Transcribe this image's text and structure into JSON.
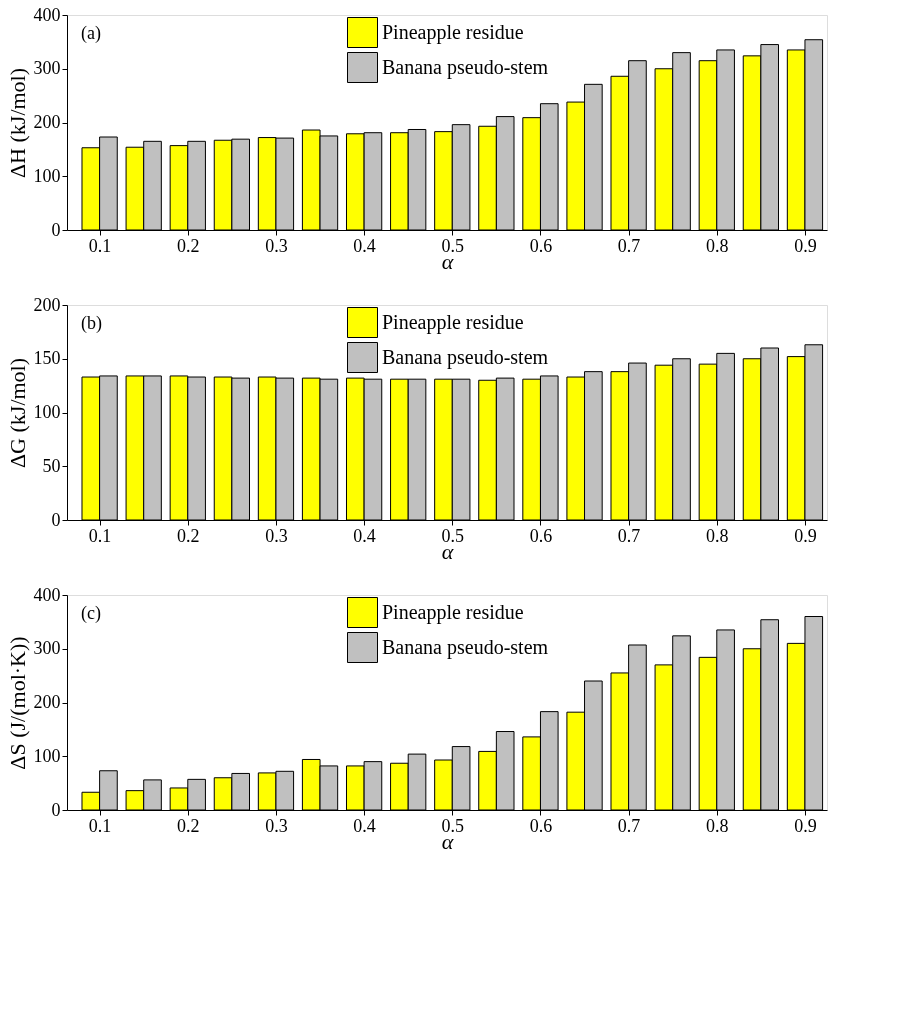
{
  "chart_data": [
    {
      "type": "bar",
      "annotations": [
        "(a)"
      ],
      "xlabel": "α",
      "ylabel": "ΔH (kJ/mol)",
      "legend": "top",
      "grid": false,
      "x": [
        0.1,
        0.15,
        0.2,
        0.25,
        0.3,
        0.35,
        0.4,
        0.45,
        0.5,
        0.55,
        0.6,
        0.65,
        0.7,
        0.75,
        0.8,
        0.85,
        0.9
      ],
      "xlim": [
        0.063,
        0.925
      ],
      "xticks": [
        0.1,
        0.2,
        0.3,
        0.4,
        0.5,
        0.6,
        0.7,
        0.8,
        0.9
      ],
      "ylim": [
        0,
        400
      ],
      "yticks": [
        0,
        100,
        200,
        300,
        400
      ],
      "series": [
        {
          "name": "Pineapple residue",
          "color": "#ffff00",
          "values": [
            153,
            154,
            157,
            167,
            172,
            186,
            179,
            181,
            183,
            193,
            209,
            238,
            286,
            300,
            315,
            324,
            335
          ]
        },
        {
          "name": "Banana pseudo-stem",
          "color": "#c0c0c0",
          "values": [
            173,
            165,
            165,
            169,
            171,
            175,
            181,
            187,
            196,
            211,
            235,
            271,
            315,
            330,
            335,
            345,
            354
          ]
        }
      ]
    },
    {
      "type": "bar",
      "annotations": [
        "(b)"
      ],
      "xlabel": "α",
      "ylabel": "ΔG (kJ/mol)",
      "legend": "top",
      "grid": false,
      "x": [
        0.1,
        0.15,
        0.2,
        0.25,
        0.3,
        0.35,
        0.4,
        0.45,
        0.5,
        0.55,
        0.6,
        0.65,
        0.7,
        0.75,
        0.8,
        0.85,
        0.9
      ],
      "xlim": [
        0.063,
        0.925
      ],
      "xticks": [
        0.1,
        0.2,
        0.3,
        0.4,
        0.5,
        0.6,
        0.7,
        0.8,
        0.9
      ],
      "ylim": [
        0,
        200
      ],
      "yticks": [
        0,
        50,
        100,
        150,
        200
      ],
      "series": [
        {
          "name": "Pineapple residue",
          "color": "#ffff00",
          "values": [
            133,
            134,
            134,
            133,
            133,
            132,
            132,
            131,
            131,
            130,
            131,
            133,
            138,
            144,
            145,
            150,
            152
          ]
        },
        {
          "name": "Banana pseudo-stem",
          "color": "#c0c0c0",
          "values": [
            134,
            134,
            133,
            132,
            132,
            131,
            131,
            131,
            131,
            132,
            134,
            138,
            146,
            150,
            155,
            160,
            163
          ]
        }
      ]
    },
    {
      "type": "bar",
      "annotations": [
        "(c)"
      ],
      "xlabel": "α",
      "ylabel": "ΔS (J/(mol·K))",
      "legend": "top",
      "grid": false,
      "x": [
        0.1,
        0.15,
        0.2,
        0.25,
        0.3,
        0.35,
        0.4,
        0.45,
        0.5,
        0.55,
        0.6,
        0.65,
        0.7,
        0.75,
        0.8,
        0.85,
        0.9
      ],
      "xlim": [
        0.063,
        0.925
      ],
      "xticks": [
        0.1,
        0.2,
        0.3,
        0.4,
        0.5,
        0.6,
        0.7,
        0.8,
        0.9
      ],
      "ylim": [
        0,
        400
      ],
      "yticks": [
        0,
        100,
        200,
        300,
        400
      ],
      "series": [
        {
          "name": "Pineapple residue",
          "color": "#ffff00",
          "values": [
            33,
            36,
            41,
            60,
            69,
            94,
            82,
            87,
            93,
            109,
            136,
            182,
            255,
            270,
            284,
            300,
            310
          ]
        },
        {
          "name": "Banana pseudo-stem",
          "color": "#c0c0c0",
          "values": [
            73,
            56,
            57,
            68,
            72,
            82,
            90,
            104,
            118,
            146,
            183,
            240,
            307,
            324,
            335,
            354,
            360
          ]
        }
      ]
    }
  ]
}
